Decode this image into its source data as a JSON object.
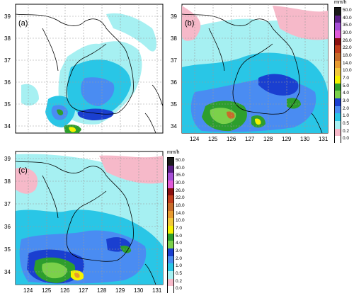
{
  "panels": [
    {
      "label": "(a)"
    },
    {
      "label": "(b)"
    },
    {
      "label": "(c)"
    }
  ],
  "axes": {
    "lon_ticks": [
      "124",
      "125",
      "126",
      "127",
      "128",
      "129",
      "130",
      "131"
    ],
    "lat_ticks": [
      "34",
      "35",
      "36",
      "37",
      "38",
      "39"
    ]
  },
  "colorbar": {
    "unit": "mm/h",
    "levels": [
      "50.0",
      "40.0",
      "35.0",
      "30.0",
      "26.0",
      "22.0",
      "18.0",
      "14.0",
      "10.0",
      "7.0",
      "5.0",
      "4.0",
      "3.0",
      "2.0",
      "1.0",
      "0.5",
      "0.2",
      "0.0"
    ],
    "colors": [
      "#1a1a1a",
      "#5a1f86",
      "#a64fd6",
      "#e05ad8",
      "#8b1010",
      "#c23d1c",
      "#c86c2a",
      "#e79a30",
      "#f1c83a",
      "#f5f200",
      "#2d9e2d",
      "#7bd14a",
      "#1a3fd0",
      "#4a8cf2",
      "#29c6e6",
      "#a6f0f2",
      "#f6b9c9",
      "#ffffff"
    ]
  }
}
